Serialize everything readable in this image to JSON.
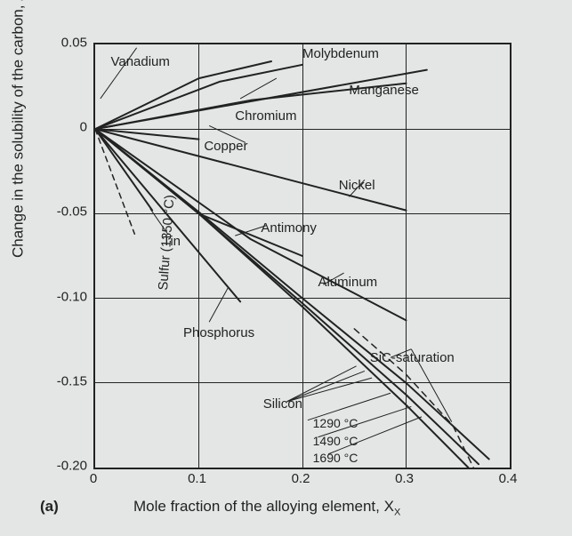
{
  "chart": {
    "type": "line",
    "background_color": "#e4e6e6",
    "axis_color": "#222222",
    "grid_color": "#222222",
    "panel_label": "(a)",
    "xlabel": "Mole fraction of the alloying element, X",
    "xlabel_sub": "X",
    "ylabel_pre": "Change in the solubility of the carbon, ΔX",
    "ylabel_sup": "X",
    "ylabel_sub": "C",
    "label_fontsize": 17,
    "tick_fontsize": 15,
    "xlim": [
      0,
      0.4
    ],
    "ylim": [
      -0.2,
      0.05
    ],
    "xticks": [
      0,
      0.1,
      0.2,
      0.3,
      0.4
    ],
    "yticks": [
      0.05,
      0,
      -0.05,
      -0.1,
      -0.15,
      -0.2
    ],
    "xtick_labels": [
      "0",
      "0.1",
      "0.2",
      "0.3",
      "0.4"
    ],
    "ytick_labels": [
      "0.05",
      "0",
      "-0.05",
      "-0.10",
      "-0.15",
      "-0.20"
    ],
    "series": {
      "molybdenum": {
        "label": "Molybdenum",
        "color": "#222222",
        "width": 2,
        "dash": "",
        "points": [
          [
            0,
            0
          ],
          [
            0.1,
            0.03
          ],
          [
            0.17,
            0.04
          ]
        ]
      },
      "vanadium": {
        "label": "Vanadium",
        "color": "#222222",
        "width": 2,
        "dash": "",
        "points": [
          [
            0,
            0
          ],
          [
            0.12,
            0.028
          ],
          [
            0.2,
            0.038
          ]
        ]
      },
      "chromium": {
        "label": "Chromium",
        "color": "#222222",
        "width": 2,
        "dash": "",
        "points": [
          [
            0,
            0
          ],
          [
            0.15,
            0.017
          ],
          [
            0.3,
            0.027
          ]
        ]
      },
      "manganese": {
        "label": "Manganese",
        "color": "#222222",
        "width": 2,
        "dash": "",
        "points": [
          [
            0,
            0
          ],
          [
            0.32,
            0.035
          ]
        ]
      },
      "copper": {
        "label": "Copper",
        "color": "#222222",
        "width": 2,
        "dash": "",
        "points": [
          [
            0,
            0
          ],
          [
            0.1,
            -0.006
          ]
        ]
      },
      "nickel": {
        "label": "Nickel",
        "color": "#222222",
        "width": 2,
        "dash": "",
        "points": [
          [
            0,
            0
          ],
          [
            0.3,
            -0.048
          ]
        ]
      },
      "tin": {
        "label": "Tin",
        "color": "#222222",
        "width": 2,
        "dash": "",
        "points": [
          [
            0,
            0
          ],
          [
            0.055,
            -0.048
          ]
        ]
      },
      "antimony": {
        "label": "Antimony",
        "color": "#222222",
        "width": 2,
        "dash": "",
        "points": [
          [
            0,
            0
          ],
          [
            0.1,
            -0.05
          ],
          [
            0.2,
            -0.075
          ]
        ]
      },
      "aluminum": {
        "label": "Aluminum",
        "color": "#222222",
        "width": 2,
        "dash": "",
        "points": [
          [
            0,
            0
          ],
          [
            0.15,
            -0.065
          ],
          [
            0.3,
            -0.113
          ]
        ]
      },
      "sulfur": {
        "label": "Sulfur (1350 °C)",
        "color": "#222222",
        "width": 1.5,
        "dash": "6,5",
        "points": [
          [
            0,
            0
          ],
          [
            0.038,
            -0.062
          ]
        ]
      },
      "phosphorus": {
        "label": "Phosphorus",
        "color": "#222222",
        "width": 2,
        "dash": "",
        "points": [
          [
            0,
            0
          ],
          [
            0.14,
            -0.102
          ]
        ]
      },
      "si_1290": {
        "label": "1290 °C",
        "color": "#222222",
        "width": 2,
        "dash": "",
        "points": [
          [
            0,
            0
          ],
          [
            0.1,
            -0.05
          ],
          [
            0.2,
            -0.105
          ],
          [
            0.3,
            -0.163
          ],
          [
            0.36,
            -0.2
          ]
        ]
      },
      "si_1490": {
        "label": "1490 °C",
        "color": "#222222",
        "width": 2,
        "dash": "",
        "points": [
          [
            0,
            0
          ],
          [
            0.1,
            -0.05
          ],
          [
            0.2,
            -0.103
          ],
          [
            0.3,
            -0.157
          ],
          [
            0.37,
            -0.198
          ]
        ]
      },
      "si_1690": {
        "label": "1690 °C",
        "color": "#222222",
        "width": 2,
        "dash": "",
        "points": [
          [
            0,
            0
          ],
          [
            0.1,
            -0.049
          ],
          [
            0.2,
            -0.1
          ],
          [
            0.3,
            -0.15
          ],
          [
            0.38,
            -0.195
          ]
        ]
      },
      "sic_saturation": {
        "label": "SiC-saturation",
        "color": "#222222",
        "width": 1.5,
        "dash": "7,6",
        "points": [
          [
            0.25,
            -0.118
          ],
          [
            0.3,
            -0.145
          ],
          [
            0.345,
            -0.175
          ],
          [
            0.365,
            -0.2
          ]
        ]
      },
      "silicon_label": {
        "label": "Silicon"
      }
    },
    "leaders": [
      {
        "from": [
          0.04,
          0.048
        ],
        "to": [
          0.005,
          0.018
        ]
      },
      {
        "from": [
          0.175,
          0.03
        ],
        "to": [
          0.14,
          0.018
        ]
      },
      {
        "from": [
          0.145,
          -0.008
        ],
        "to": [
          0.11,
          0.002
        ]
      },
      {
        "from": [
          0.26,
          -0.03
        ],
        "to": [
          0.245,
          -0.04
        ]
      },
      {
        "from": [
          0.07,
          -0.062
        ],
        "to": [
          0.053,
          -0.047
        ]
      },
      {
        "from": [
          0.165,
          -0.057
        ],
        "to": [
          0.135,
          -0.063
        ]
      },
      {
        "from": [
          0.24,
          -0.085
        ],
        "to": [
          0.22,
          -0.092
        ]
      },
      {
        "from": [
          0.11,
          -0.114
        ],
        "to": [
          0.128,
          -0.094
        ]
      },
      {
        "from": [
          0.305,
          -0.13
        ],
        "to": [
          0.285,
          -0.135
        ]
      },
      {
        "from": [
          0.305,
          -0.13
        ],
        "to": [
          0.344,
          -0.173
        ]
      },
      {
        "from": [
          0.185,
          -0.161
        ],
        "to": [
          0.252,
          -0.14
        ]
      },
      {
        "from": [
          0.185,
          -0.161
        ],
        "to": [
          0.26,
          -0.143
        ]
      },
      {
        "from": [
          0.185,
          -0.161
        ],
        "to": [
          0.267,
          -0.147
        ]
      },
      {
        "from": [
          0.205,
          -0.172
        ],
        "to": [
          0.285,
          -0.156
        ]
      },
      {
        "from": [
          0.215,
          -0.182
        ],
        "to": [
          0.305,
          -0.164
        ]
      },
      {
        "from": [
          0.225,
          -0.192
        ],
        "to": [
          0.315,
          -0.17
        ]
      }
    ],
    "label_positions": {
      "molybdenum": [
        0.2,
        0.045
      ],
      "vanadium": [
        0.015,
        0.04
      ],
      "chromium": [
        0.135,
        0.008
      ],
      "manganese": [
        0.245,
        0.023
      ],
      "copper": [
        0.105,
        -0.01
      ],
      "nickel": [
        0.235,
        -0.033
      ],
      "tin": [
        0.065,
        -0.066
      ],
      "antimony": [
        0.16,
        -0.058
      ],
      "aluminum": [
        0.215,
        -0.09
      ],
      "sulfur": [
        0.058,
        -0.095
      ],
      "phosphorus": [
        0.085,
        -0.12
      ],
      "sic": [
        0.265,
        -0.135
      ],
      "silicon": [
        0.162,
        -0.162
      ],
      "t1290": [
        0.21,
        -0.174
      ],
      "t1490": [
        0.21,
        -0.184
      ],
      "t1690": [
        0.21,
        -0.194
      ]
    }
  }
}
